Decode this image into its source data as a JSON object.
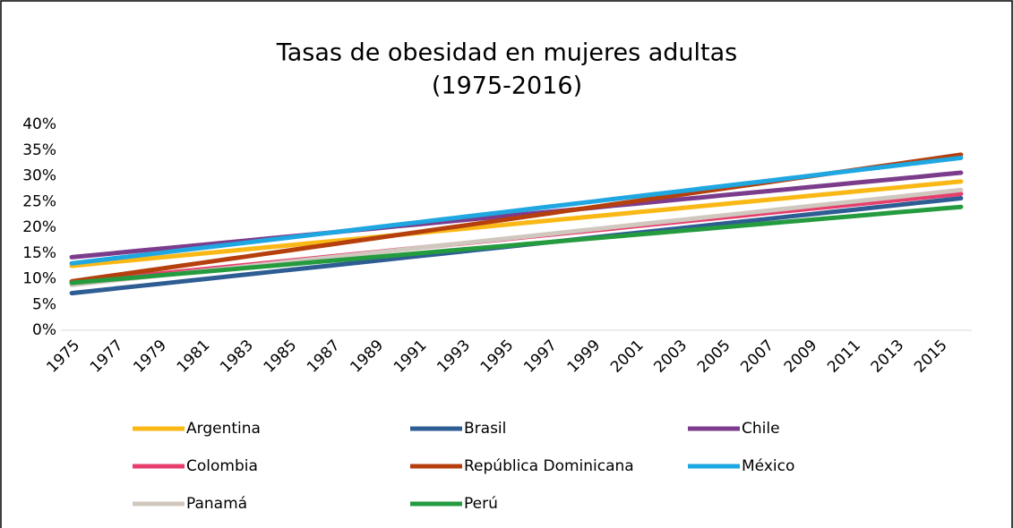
{
  "chart_data": {
    "type": "line",
    "title": "Tasas de obesidad en mujeres adultas",
    "subtitle": "(1975-2016)",
    "categories": [
      1975,
      null,
      1977,
      null,
      1979,
      null,
      1981,
      null,
      1983,
      null,
      1985,
      null,
      1987,
      null,
      1989,
      null,
      1991,
      null,
      1993,
      null,
      1995,
      null,
      1997,
      null,
      1999,
      null,
      2001,
      null,
      2003,
      null,
      2005,
      null,
      2007,
      null,
      2009,
      null,
      2011,
      null,
      2013,
      null,
      2015,
      null
    ],
    "ylim": [
      0,
      40
    ],
    "yticks": [
      {
        "value": 0,
        "label": "0%"
      },
      {
        "value": 5,
        "label": "5%"
      },
      {
        "value": 10,
        "label": "10%"
      },
      {
        "value": 15,
        "label": "15%"
      },
      {
        "value": 20,
        "label": "20%"
      },
      {
        "value": 25,
        "label": "25%"
      },
      {
        "value": 30,
        "label": "30%"
      },
      {
        "value": 35,
        "label": "35%"
      },
      {
        "value": 40,
        "label": "40%"
      }
    ],
    "grid": false,
    "legend": "bottom",
    "series": [
      {
        "name": "Argentina",
        "color": "#f9b816",
        "values": [
          12.5,
          12.9,
          13.3,
          13.7,
          14.1,
          14.5,
          14.9,
          15.3,
          15.7,
          16.1,
          16.5,
          16.9,
          17.3,
          17.7,
          18.1,
          18.5,
          18.9,
          19.3,
          19.7,
          20.1,
          20.5,
          20.9,
          21.3,
          21.7,
          22.1,
          22.5,
          22.9,
          23.3,
          23.7,
          24.1,
          24.5,
          24.9,
          25.3,
          25.7,
          26.1,
          26.5,
          26.9,
          27.3,
          27.7,
          28.1,
          28.5,
          28.9
        ]
      },
      {
        "name": "Brasil",
        "color": "#2e5d94",
        "values": [
          7.2,
          7.65,
          8.1,
          8.55,
          9,
          9.45,
          9.9,
          10.35,
          10.8,
          11.25,
          11.7,
          12.15,
          12.6,
          13.05,
          13.5,
          13.95,
          14.4,
          14.85,
          15.3,
          15.75,
          16.2,
          16.65,
          17.1,
          17.55,
          18,
          18.45,
          18.9,
          19.35,
          19.8,
          20.25,
          20.7,
          21.15,
          21.6,
          22.05,
          22.5,
          22.95,
          23.4,
          23.85,
          24.3,
          24.75,
          25.2,
          25.65
        ]
      },
      {
        "name": "Chile",
        "color": "#7c3c8c",
        "values": [
          14.2,
          14.6,
          15,
          15.4,
          15.8,
          16.2,
          16.6,
          17,
          17.4,
          17.8,
          18.2,
          18.6,
          19,
          19.4,
          19.8,
          20.2,
          20.6,
          21,
          21.4,
          21.8,
          22.2,
          22.6,
          23,
          23.4,
          23.8,
          24.2,
          24.6,
          25,
          25.4,
          25.8,
          26.2,
          26.6,
          27,
          27.4,
          27.8,
          28.2,
          28.6,
          29,
          29.4,
          29.8,
          30.2,
          30.6
        ]
      },
      {
        "name": "Colombia",
        "color": "#e63e6d",
        "values": [
          9.3,
          9.72,
          10.14,
          10.56,
          10.98,
          11.4,
          11.82,
          12.24,
          12.66,
          13.08,
          13.5,
          13.92,
          14.34,
          14.76,
          15.18,
          15.6,
          16.02,
          16.44,
          16.86,
          17.28,
          17.7,
          18.12,
          18.54,
          18.96,
          19.38,
          19.8,
          20.22,
          20.64,
          21.06,
          21.48,
          21.9,
          22.32,
          22.74,
          23.16,
          23.58,
          24,
          24.42,
          24.84,
          25.26,
          25.68,
          26.1,
          26.52
        ]
      },
      {
        "name": "República Dominicana",
        "color": "#b5400e",
        "values": [
          9.5,
          10.1,
          10.7,
          11.3,
          11.9,
          12.5,
          13.1,
          13.7,
          14.3,
          14.9,
          15.5,
          16.1,
          16.7,
          17.3,
          17.9,
          18.5,
          19.1,
          19.7,
          20.3,
          20.9,
          21.5,
          22.1,
          22.7,
          23.3,
          23.9,
          24.5,
          25.1,
          25.7,
          26.3,
          26.9,
          27.5,
          28.1,
          28.7,
          29.3,
          29.9,
          30.5,
          31.1,
          31.7,
          32.3,
          32.9,
          33.5,
          34.1
        ]
      },
      {
        "name": "México",
        "color": "#1ea7e1",
        "values": [
          13,
          13.5,
          14,
          14.5,
          15,
          15.5,
          16,
          16.5,
          17,
          17.5,
          18,
          18.5,
          19,
          19.5,
          20,
          20.5,
          21,
          21.5,
          22,
          22.5,
          23,
          23.5,
          24,
          24.5,
          25,
          25.5,
          26,
          26.5,
          27,
          27.5,
          28,
          28.5,
          29,
          29.5,
          30,
          30.5,
          31,
          31.5,
          32,
          32.5,
          33,
          33.5
        ]
      },
      {
        "name": "Panamá",
        "color": "#d0c7be",
        "values": [
          8.8,
          9.25,
          9.7,
          10.15,
          10.6,
          11.05,
          11.5,
          11.95,
          12.4,
          12.85,
          13.3,
          13.75,
          14.2,
          14.65,
          15.1,
          15.55,
          16,
          16.45,
          16.9,
          17.35,
          17.8,
          18.25,
          18.7,
          19.15,
          19.6,
          20.05,
          20.5,
          20.95,
          21.4,
          21.85,
          22.3,
          22.75,
          23.2,
          23.65,
          24.1,
          24.55,
          25,
          25.45,
          25.9,
          26.35,
          26.8,
          27.25
        ]
      },
      {
        "name": "Perú",
        "color": "#259b3f",
        "values": [
          9.2,
          9.56,
          9.92,
          10.28,
          10.64,
          11,
          11.36,
          11.72,
          12.08,
          12.44,
          12.8,
          13.16,
          13.52,
          13.88,
          14.24,
          14.6,
          14.96,
          15.32,
          15.68,
          16.04,
          16.4,
          16.76,
          17.12,
          17.48,
          17.84,
          18.2,
          18.56,
          18.92,
          19.28,
          19.64,
          20,
          20.36,
          20.72,
          21.08,
          21.44,
          21.8,
          22.16,
          22.52,
          22.88,
          23.24,
          23.6,
          23.96
        ]
      }
    ]
  }
}
